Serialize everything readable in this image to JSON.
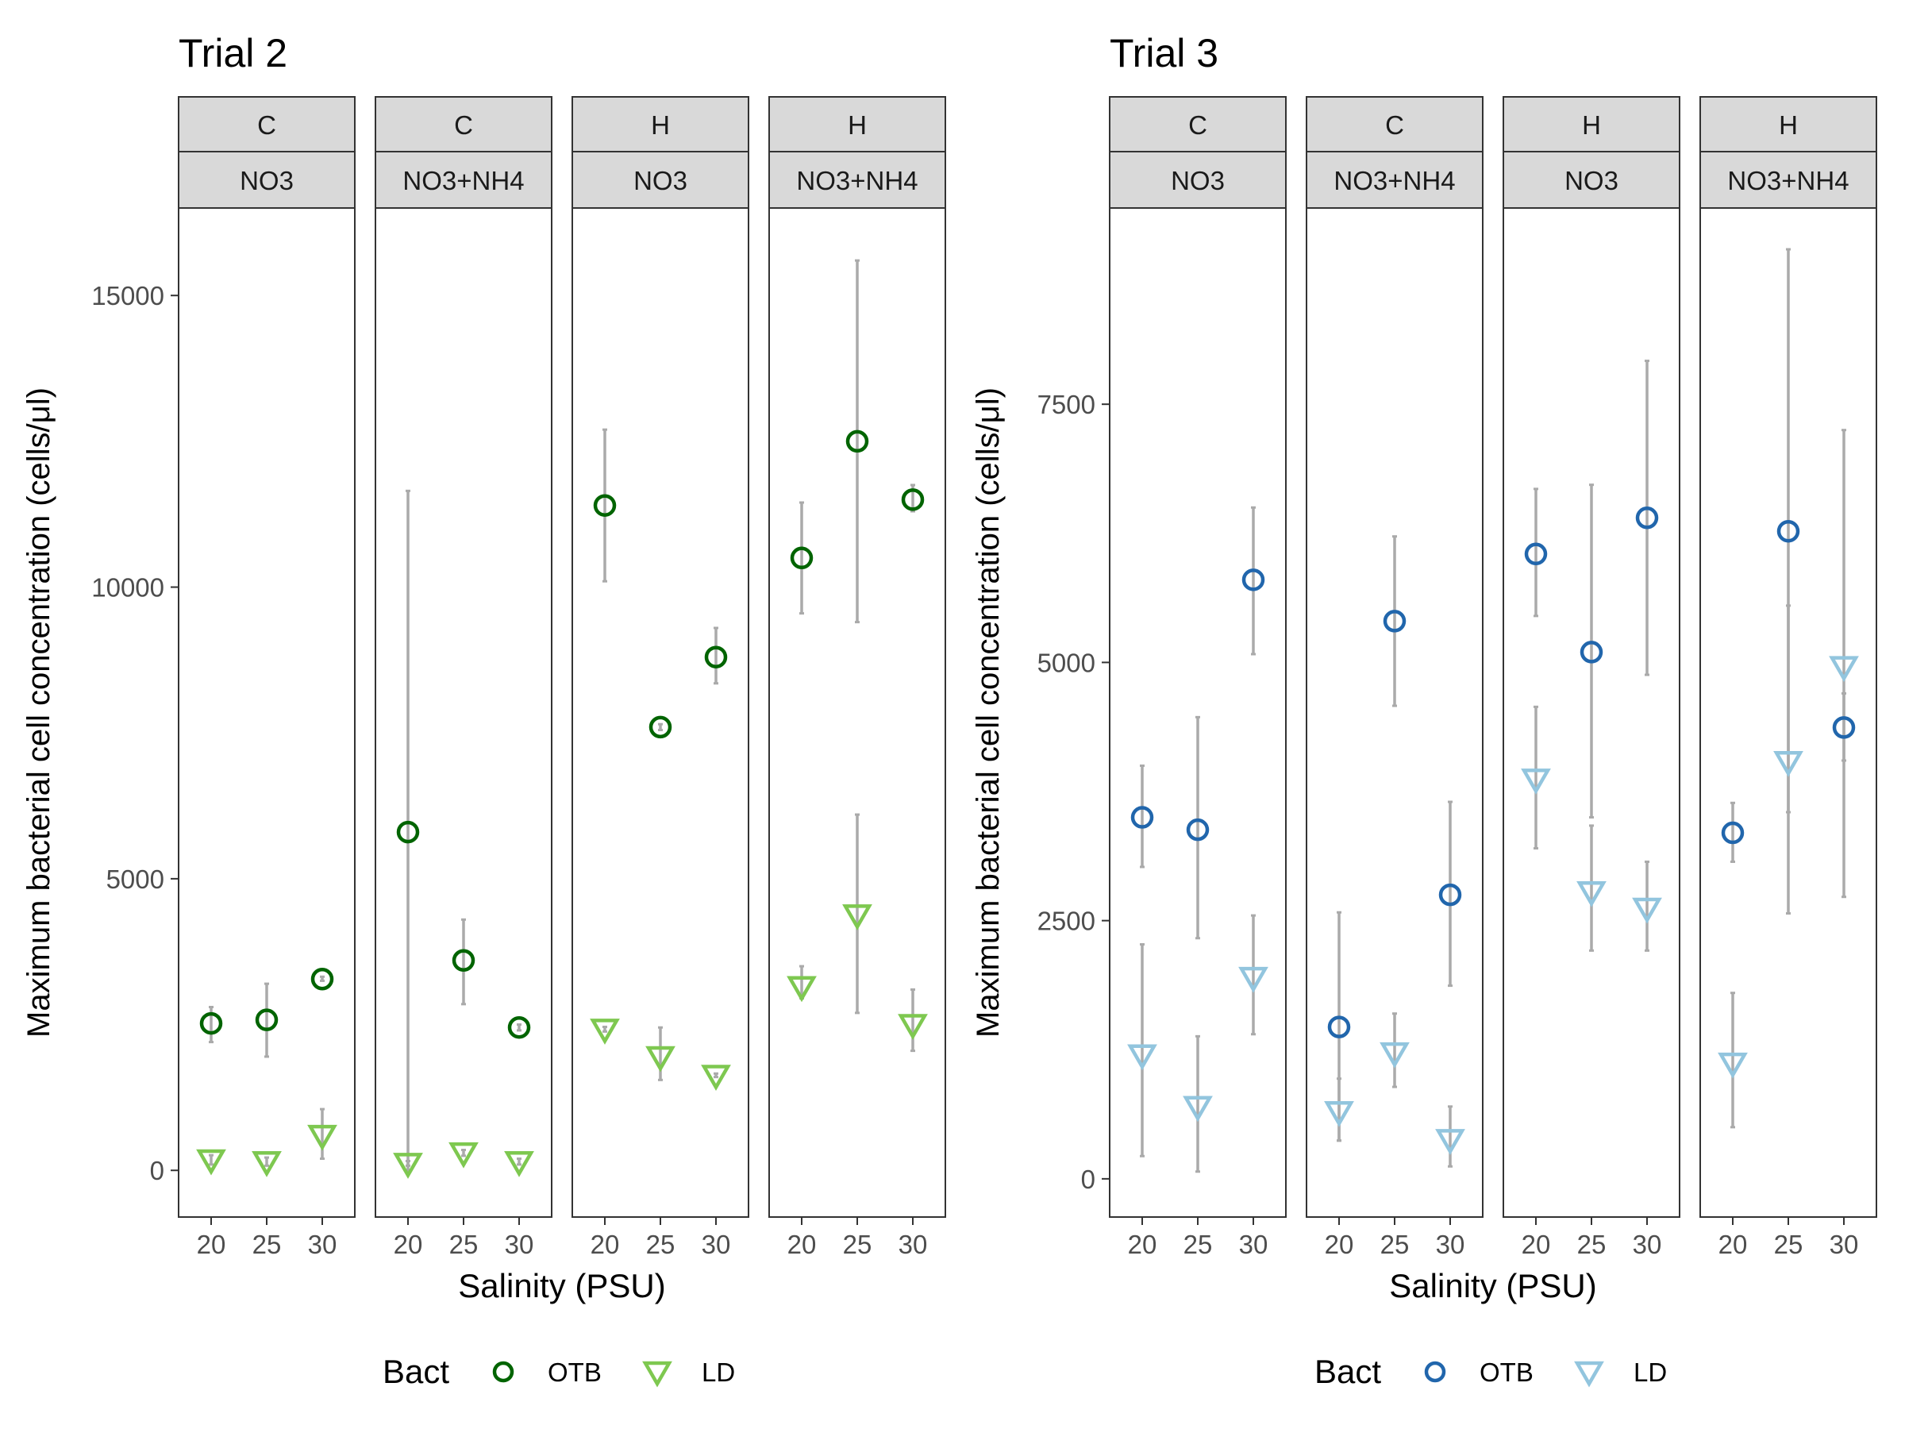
{
  "legend": {
    "title": "Bact"
  },
  "chart_data": [
    {
      "type": "scatter",
      "title": "Trial 2",
      "xlabel": "Salinity (PSU)",
      "ylabel": "Maximum bacterial cell concentration (cells/μl)",
      "ylim": [
        -800,
        16500
      ],
      "yticks": [
        0,
        5000,
        10000,
        15000
      ],
      "xticks": [
        20,
        25,
        30
      ],
      "legend_placement": "bottom",
      "colors": {
        "OTB": "#006400",
        "LD": "#7ec850"
      },
      "panels": [
        {
          "strip_top": "C",
          "strip_bottom": "NO3",
          "series": [
            {
              "name": "OTB",
              "points": [
                {
                  "x": 20,
                  "y": 2520,
                  "err": [
                    2200,
                    2800
                  ]
                },
                {
                  "x": 25,
                  "y": 2580,
                  "err": [
                    1950,
                    3200
                  ]
                },
                {
                  "x": 30,
                  "y": 3280,
                  "err": [
                    3250,
                    3320
                  ]
                }
              ]
            },
            {
              "name": "LD",
              "points": [
                {
                  "x": 20,
                  "y": 180,
                  "err": [
                    100,
                    260
                  ]
                },
                {
                  "x": 25,
                  "y": 150,
                  "err": [
                    80,
                    220
                  ]
                },
                {
                  "x": 30,
                  "y": 600,
                  "err": [
                    200,
                    1050
                  ]
                }
              ]
            }
          ]
        },
        {
          "strip_top": "C",
          "strip_bottom": "NO3+NH4",
          "series": [
            {
              "name": "OTB",
              "points": [
                {
                  "x": 20,
                  "y": 5800,
                  "err": [
                    0,
                    11650
                  ]
                },
                {
                  "x": 25,
                  "y": 3600,
                  "err": [
                    2850,
                    4300
                  ]
                },
                {
                  "x": 30,
                  "y": 2450,
                  "err": [
                    2400,
                    2500
                  ]
                }
              ]
            },
            {
              "name": "LD",
              "points": [
                {
                  "x": 20,
                  "y": 120,
                  "err": [
                    80,
                    160
                  ]
                },
                {
                  "x": 25,
                  "y": 300,
                  "err": [
                    250,
                    350
                  ]
                },
                {
                  "x": 30,
                  "y": 150,
                  "err": [
                    100,
                    200
                  ]
                }
              ]
            }
          ]
        },
        {
          "strip_top": "H",
          "strip_bottom": "NO3",
          "series": [
            {
              "name": "OTB",
              "points": [
                {
                  "x": 20,
                  "y": 11400,
                  "err": [
                    10100,
                    12700
                  ]
                },
                {
                  "x": 25,
                  "y": 7600,
                  "err": [
                    7550,
                    7650
                  ]
                },
                {
                  "x": 30,
                  "y": 8800,
                  "err": [
                    8350,
                    9300
                  ]
                }
              ]
            },
            {
              "name": "LD",
              "points": [
                {
                  "x": 20,
                  "y": 2420,
                  "err": [
                    2380,
                    2460
                  ]
                },
                {
                  "x": 25,
                  "y": 1950,
                  "err": [
                    1550,
                    2450
                  ]
                },
                {
                  "x": 30,
                  "y": 1630,
                  "err": [
                    1600,
                    1660
                  ]
                }
              ]
            }
          ]
        },
        {
          "strip_top": "H",
          "strip_bottom": "NO3+NH4",
          "series": [
            {
              "name": "OTB",
              "points": [
                {
                  "x": 20,
                  "y": 10500,
                  "err": [
                    9550,
                    11450
                  ]
                },
                {
                  "x": 25,
                  "y": 12500,
                  "err": [
                    9400,
                    15600
                  ]
                },
                {
                  "x": 30,
                  "y": 11500,
                  "err": [
                    11300,
                    11750
                  ]
                }
              ]
            },
            {
              "name": "LD",
              "points": [
                {
                  "x": 20,
                  "y": 3150,
                  "err": [
                    2950,
                    3500
                  ]
                },
                {
                  "x": 25,
                  "y": 4380,
                  "err": [
                    2700,
                    6100
                  ]
                },
                {
                  "x": 30,
                  "y": 2500,
                  "err": [
                    2050,
                    3100
                  ]
                }
              ]
            }
          ]
        }
      ]
    },
    {
      "type": "scatter",
      "title": "Trial 3",
      "xlabel": "Salinity (PSU)",
      "ylabel": "Maximum bacterial cell concentration (cells/μl)",
      "ylim": [
        -370,
        9400
      ],
      "yticks": [
        0,
        2500,
        5000,
        7500
      ],
      "xticks": [
        20,
        25,
        30
      ],
      "legend_placement": "bottom",
      "colors": {
        "OTB": "#2166ac",
        "LD": "#92c5de"
      },
      "panels": [
        {
          "strip_top": "C",
          "strip_bottom": "NO3",
          "series": [
            {
              "name": "OTB",
              "points": [
                {
                  "x": 20,
                  "y": 3500,
                  "err": [
                    3020,
                    4000
                  ]
                },
                {
                  "x": 25,
                  "y": 3380,
                  "err": [
                    2330,
                    4470
                  ]
                },
                {
                  "x": 30,
                  "y": 5800,
                  "err": [
                    5080,
                    6500
                  ]
                }
              ]
            },
            {
              "name": "LD",
              "points": [
                {
                  "x": 20,
                  "y": 1200,
                  "err": [
                    220,
                    2270
                  ]
                },
                {
                  "x": 25,
                  "y": 700,
                  "err": [
                    70,
                    1380
                  ]
                },
                {
                  "x": 30,
                  "y": 1950,
                  "err": [
                    1400,
                    2550
                  ]
                }
              ]
            }
          ]
        },
        {
          "strip_top": "C",
          "strip_bottom": "NO3+NH4",
          "series": [
            {
              "name": "OTB",
              "points": [
                {
                  "x": 20,
                  "y": 1470,
                  "err": [
                    370,
                    2580
                  ]
                },
                {
                  "x": 25,
                  "y": 5400,
                  "err": [
                    4580,
                    6220
                  ]
                },
                {
                  "x": 30,
                  "y": 2750,
                  "err": [
                    1870,
                    3650
                  ]
                }
              ]
            },
            {
              "name": "LD",
              "points": [
                {
                  "x": 20,
                  "y": 650,
                  "err": [
                    370,
                    970
                  ]
                },
                {
                  "x": 25,
                  "y": 1220,
                  "err": [
                    890,
                    1600
                  ]
                },
                {
                  "x": 30,
                  "y": 380,
                  "err": [
                    120,
                    700
                  ]
                }
              ]
            }
          ]
        },
        {
          "strip_top": "H",
          "strip_bottom": "NO3",
          "series": [
            {
              "name": "OTB",
              "points": [
                {
                  "x": 20,
                  "y": 6050,
                  "err": [
                    5450,
                    6680
                  ]
                },
                {
                  "x": 25,
                  "y": 5100,
                  "err": [
                    3500,
                    6720
                  ]
                },
                {
                  "x": 30,
                  "y": 6400,
                  "err": [
                    4880,
                    7920
                  ]
                }
              ]
            },
            {
              "name": "LD",
              "points": [
                {
                  "x": 20,
                  "y": 3870,
                  "err": [
                    3200,
                    4570
                  ]
                },
                {
                  "x": 25,
                  "y": 2780,
                  "err": [
                    2210,
                    3420
                  ]
                },
                {
                  "x": 30,
                  "y": 2620,
                  "err": [
                    2210,
                    3070
                  ]
                }
              ]
            }
          ]
        },
        {
          "strip_top": "H",
          "strip_bottom": "NO3+NH4",
          "series": [
            {
              "name": "OTB",
              "points": [
                {
                  "x": 20,
                  "y": 3350,
                  "err": [
                    3070,
                    3640
                  ]
                },
                {
                  "x": 25,
                  "y": 6270,
                  "err": [
                    3550,
                    9000
                  ]
                },
                {
                  "x": 30,
                  "y": 4370,
                  "err": [
                    4050,
                    4700
                  ]
                }
              ]
            },
            {
              "name": "LD",
              "points": [
                {
                  "x": 20,
                  "y": 1120,
                  "err": [
                    500,
                    1800
                  ]
                },
                {
                  "x": 25,
                  "y": 4040,
                  "err": [
                    2570,
                    5550
                  ]
                },
                {
                  "x": 30,
                  "y": 4960,
                  "err": [
                    2730,
                    7250
                  ]
                }
              ]
            }
          ]
        }
      ]
    }
  ]
}
